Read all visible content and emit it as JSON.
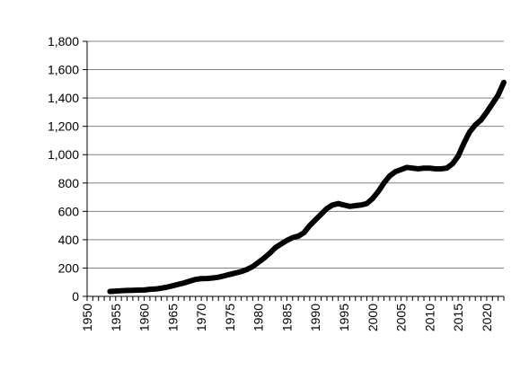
{
  "chart_data": {
    "type": "line",
    "title": "",
    "xlabel": "",
    "ylabel": "",
    "xlim": [
      1950,
      2023
    ],
    "ylim": [
      0,
      1800
    ],
    "x_ticks": [
      "1950",
      "1955",
      "1960",
      "1965",
      "1970",
      "1975",
      "1980",
      "1985",
      "1990",
      "1995",
      "2000",
      "2005",
      "2010",
      "2015",
      "2020"
    ],
    "y_ticks": [
      "0",
      "200",
      "400",
      "600",
      "800",
      "1,000",
      "1,200",
      "1,400",
      "1,600",
      "1,800"
    ],
    "grid": "horizontal",
    "legend": "none",
    "line_color": "#000000",
    "series": [
      {
        "x": [
          1954,
          1955,
          1956,
          1957,
          1958,
          1959,
          1960,
          1961,
          1962,
          1963,
          1964,
          1965,
          1966,
          1967,
          1968,
          1969,
          1970,
          1971,
          1972,
          1973,
          1974,
          1975,
          1976,
          1977,
          1978,
          1979,
          1980,
          1981,
          1982,
          1983,
          1984,
          1985,
          1986,
          1987,
          1988,
          1989,
          1990,
          1991,
          1992,
          1993,
          1994,
          1995,
          1996,
          1997,
          1998,
          1999,
          2000,
          2001,
          2002,
          2003,
          2004,
          2005,
          2006,
          2007,
          2008,
          2009,
          2010,
          2011,
          2012,
          2013,
          2014,
          2015,
          2016,
          2017,
          2018,
          2019,
          2020,
          2021,
          2022,
          2023
        ],
        "values": [
          35,
          37,
          40,
          42,
          43,
          44,
          45,
          50,
          52,
          58,
          65,
          75,
          85,
          95,
          108,
          120,
          125,
          126,
          130,
          135,
          145,
          155,
          165,
          175,
          190,
          210,
          240,
          270,
          305,
          345,
          370,
          395,
          415,
          425,
          450,
          500,
          540,
          580,
          620,
          645,
          655,
          645,
          635,
          640,
          645,
          655,
          690,
          740,
          800,
          850,
          880,
          895,
          910,
          905,
          900,
          905,
          905,
          900,
          900,
          905,
          935,
          990,
          1080,
          1160,
          1210,
          1245,
          1300,
          1360,
          1420,
          1510
        ]
      }
    ]
  }
}
